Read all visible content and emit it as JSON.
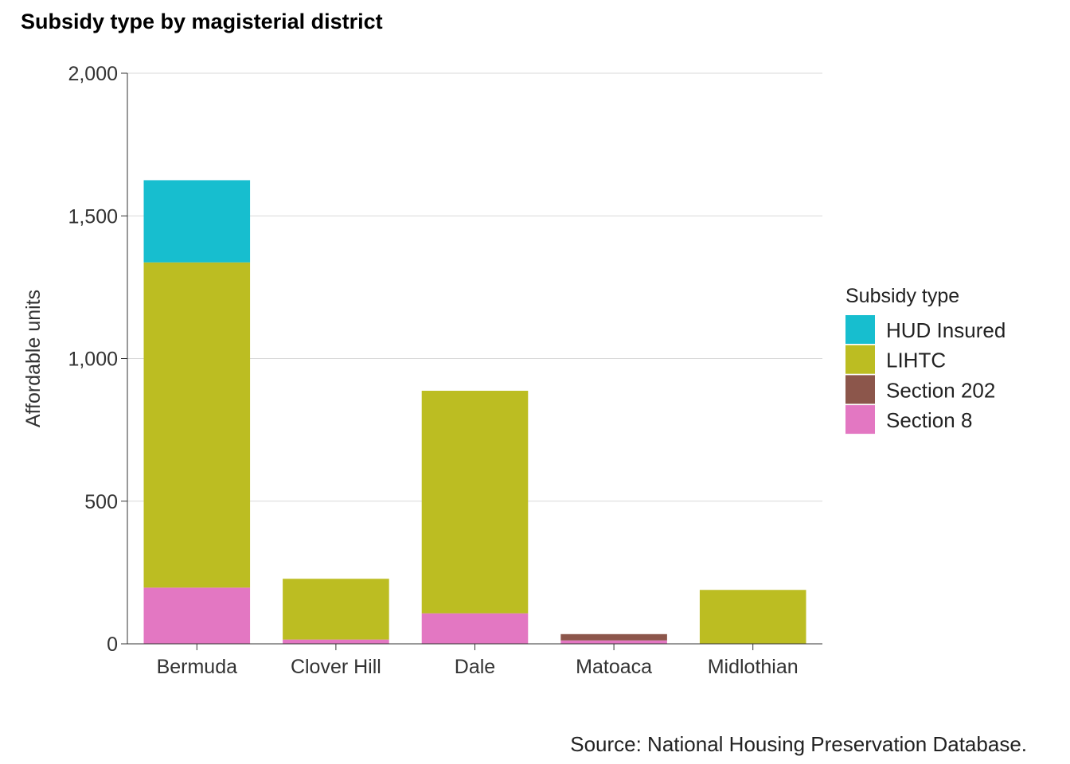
{
  "chart_data": {
    "type": "bar",
    "stacked": true,
    "title": "Subsidy type by magisterial district",
    "ylabel": "Affordable units",
    "xlabel": "",
    "ylim": [
      0,
      2000
    ],
    "yticks": [
      0,
      500,
      1000,
      1500,
      2000
    ],
    "ytick_labels": [
      "0",
      "500",
      "1,000",
      "1,500",
      "2,000"
    ],
    "categories": [
      "Bermuda",
      "Clover Hill",
      "Dale",
      "Matoaca",
      "Midlothian"
    ],
    "series": [
      {
        "name": "Section 8",
        "color": "#e377c2",
        "values": [
          197,
          15,
          107,
          12,
          0
        ]
      },
      {
        "name": "Section 202",
        "color": "#8c564b",
        "values": [
          0,
          0,
          0,
          22,
          0
        ]
      },
      {
        "name": "LIHTC",
        "color": "#bcbd22",
        "values": [
          1140,
          213,
          780,
          0,
          189
        ]
      },
      {
        "name": "HUD Insured",
        "color": "#17becf",
        "values": [
          288,
          0,
          0,
          0,
          0
        ]
      }
    ],
    "legend": {
      "title": "Subsidy type",
      "placement": "right",
      "order": [
        "HUD Insured",
        "LIHTC",
        "Section 202",
        "Section 8"
      ]
    },
    "grid": true,
    "source": "Source: National Housing Preservation Database."
  }
}
